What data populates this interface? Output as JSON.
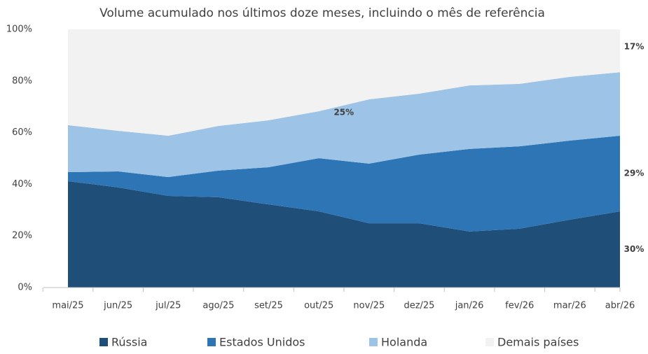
{
  "chart_data": {
    "type": "stacked_area",
    "title": "Volume acumulado nos últimos doze meses, incluindo o mês de referência",
    "categories": [
      "mai/25",
      "jun/25",
      "jul/25",
      "ago/25",
      "set/25",
      "out/25",
      "nov/25",
      "dez/25",
      "jan/26",
      "fev/26",
      "mar/26",
      "abr/26"
    ],
    "series": [
      {
        "name": "Rússia",
        "color": "#1f4e79",
        "values": [
          41.2,
          38.8,
          35.5,
          35.0,
          32.2,
          29.5,
          24.9,
          24.9,
          21.7,
          22.8,
          26.3,
          29.5
        ],
        "value_labels": [
          null,
          null,
          null,
          null,
          null,
          null,
          null,
          null,
          null,
          null,
          null,
          "30%"
        ]
      },
      {
        "name": "Estados Unidos",
        "color": "#2e75b6",
        "values": [
          3.5,
          6.2,
          7.3,
          10.3,
          14.4,
          20.6,
          23.1,
          26.6,
          32.0,
          31.9,
          30.6,
          29.3
        ],
        "value_labels": [
          null,
          null,
          null,
          null,
          null,
          null,
          null,
          null,
          null,
          null,
          null,
          "29%"
        ]
      },
      {
        "name": "Holanda",
        "color": "#9dc3e6",
        "values": [
          18.2,
          15.7,
          16.0,
          17.3,
          18.2,
          18.2,
          24.9,
          23.6,
          24.6,
          24.2,
          24.7,
          24.6
        ],
        "value_labels": [
          null,
          null,
          null,
          null,
          null,
          null,
          "25%",
          null,
          null,
          null,
          null,
          null
        ]
      },
      {
        "name": "Demais países",
        "color": "#f2f2f2",
        "values": [
          37.1,
          39.3,
          41.2,
          37.4,
          35.2,
          31.7,
          27.1,
          24.9,
          21.7,
          21.1,
          18.4,
          16.6
        ],
        "value_labels": [
          null,
          null,
          null,
          null,
          null,
          null,
          null,
          null,
          null,
          null,
          null,
          "17%"
        ]
      }
    ],
    "label_color": "#2e75b6",
    "ylim": [
      0,
      100
    ],
    "yticks": [
      {
        "value": 0,
        "label": "0%"
      },
      {
        "value": 20,
        "label": "20%"
      },
      {
        "value": 40,
        "label": "40%"
      },
      {
        "value": 60,
        "label": "60%"
      },
      {
        "value": 80,
        "label": "80%"
      },
      {
        "value": 100,
        "label": "100%"
      }
    ],
    "grid": false,
    "legend": "bottom"
  }
}
